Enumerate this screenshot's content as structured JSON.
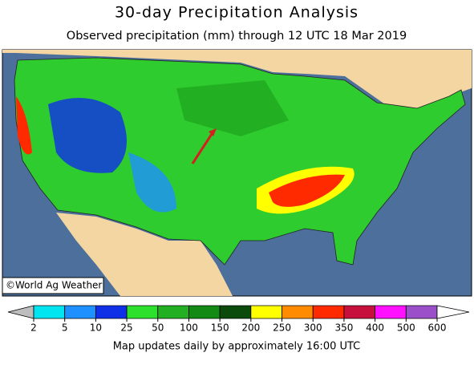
{
  "header": {
    "title": "30-day Precipitation Analysis",
    "subtitle": "Observed precipitation (mm) through 12 UTC 18 Mar 2019"
  },
  "map": {
    "credit": "©World Ag Weather"
  },
  "legend": {
    "ticks": [
      2,
      5,
      10,
      25,
      50,
      100,
      150,
      200,
      250,
      300,
      350,
      400,
      500,
      600
    ],
    "colors": [
      "#bdbdbd",
      "#00e5f0",
      "#1e90ff",
      "#1030e8",
      "#2ee02e",
      "#22b022",
      "#138a13",
      "#0a4a0a",
      "#ffff00",
      "#ff8c00",
      "#ff2a00",
      "#c8103c",
      "#ff10ff",
      "#9b4fc8",
      "#ffffff"
    ]
  },
  "footer": {
    "note": "Map updates daily by approximately 16:00 UTC"
  }
}
